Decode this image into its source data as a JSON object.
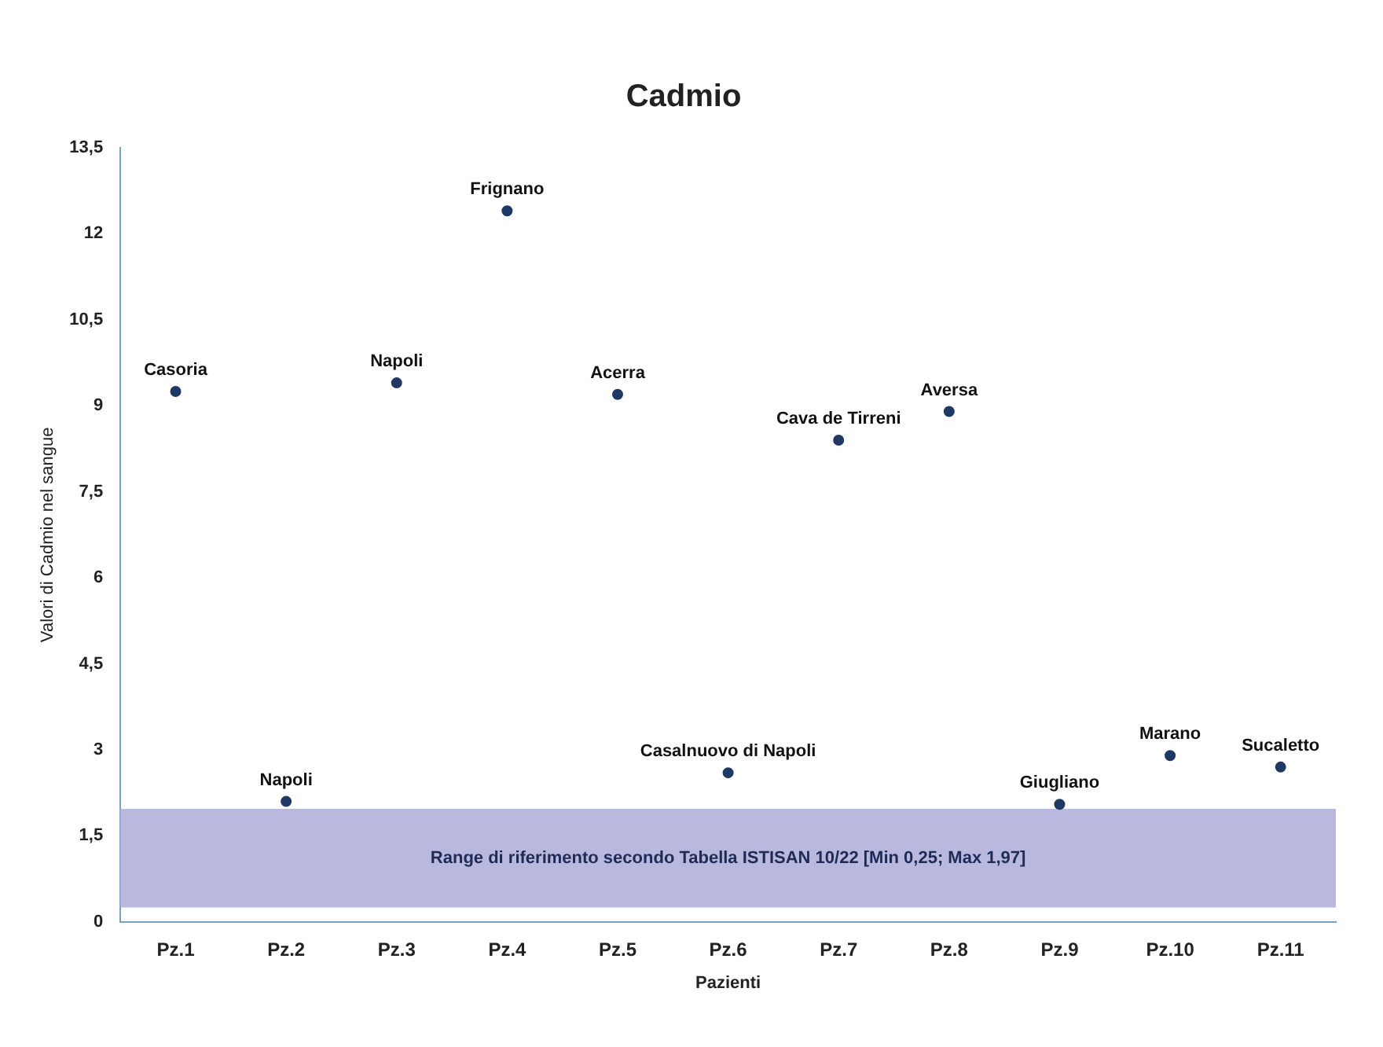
{
  "chart_data": {
    "type": "scatter",
    "title": "Cadmio",
    "xlabel": "Pazienti",
    "ylabel": "Valori di Cadmio nel sangue",
    "categories": [
      "Pz.1",
      "Pz.2",
      "Pz.3",
      "Pz.4",
      "Pz.5",
      "Pz.6",
      "Pz.7",
      "Pz.8",
      "Pz.9",
      "Pz.10",
      "Pz.11"
    ],
    "series": [
      {
        "color": "#1f3864",
        "values": [
          9.25,
          2.1,
          9.4,
          12.4,
          9.2,
          2.6,
          8.4,
          8.9,
          2.05,
          2.9,
          2.7
        ]
      }
    ],
    "marker": "circle",
    "grid": false,
    "legend": false,
    "ylim": [
      0,
      13.5
    ],
    "yticks": [
      0,
      {
        "value": 1.5,
        "label": "1,5"
      },
      3,
      {
        "value": 4.5,
        "label": "4,5"
      },
      6,
      {
        "value": 7.5,
        "label": "7,5"
      },
      9,
      {
        "value": 10.5,
        "label": "10,5"
      },
      12,
      {
        "value": 13.5,
        "label": "13,5"
      }
    ],
    "bands": [
      {
        "axis": "y",
        "from": 0.25,
        "to": 1.97,
        "color": "#b9b9df",
        "label": "Range di riferimento secondo Tabella ISTISAN 10/22 [Min 0,25; Max 1,97]"
      }
    ],
    "annotations": [
      {
        "text": "Casoria",
        "x": "Pz.1",
        "y": 9.25
      },
      {
        "text": "Napoli",
        "x": "Pz.2",
        "y": 2.1
      },
      {
        "text": "Napoli",
        "x": "Pz.3",
        "y": 9.4
      },
      {
        "text": "Frignano",
        "x": "Pz.4",
        "y": 12.4
      },
      {
        "text": "Acerra",
        "x": "Pz.5",
        "y": 9.2
      },
      {
        "text": "Casalnuovo di Napoli",
        "x": "Pz.6",
        "y": 2.6
      },
      {
        "text": "Cava de Tirreni",
        "x": "Pz.7",
        "y": 8.4
      },
      {
        "text": "Aversa",
        "x": "Pz.8",
        "y": 8.9
      },
      {
        "text": "Giugliano",
        "x": "Pz.9",
        "y": 2.05
      },
      {
        "text": "Marano",
        "x": "Pz.10",
        "y": 2.9
      },
      {
        "text": "Sucaletto",
        "x": "Pz.11",
        "y": 2.7
      }
    ]
  }
}
